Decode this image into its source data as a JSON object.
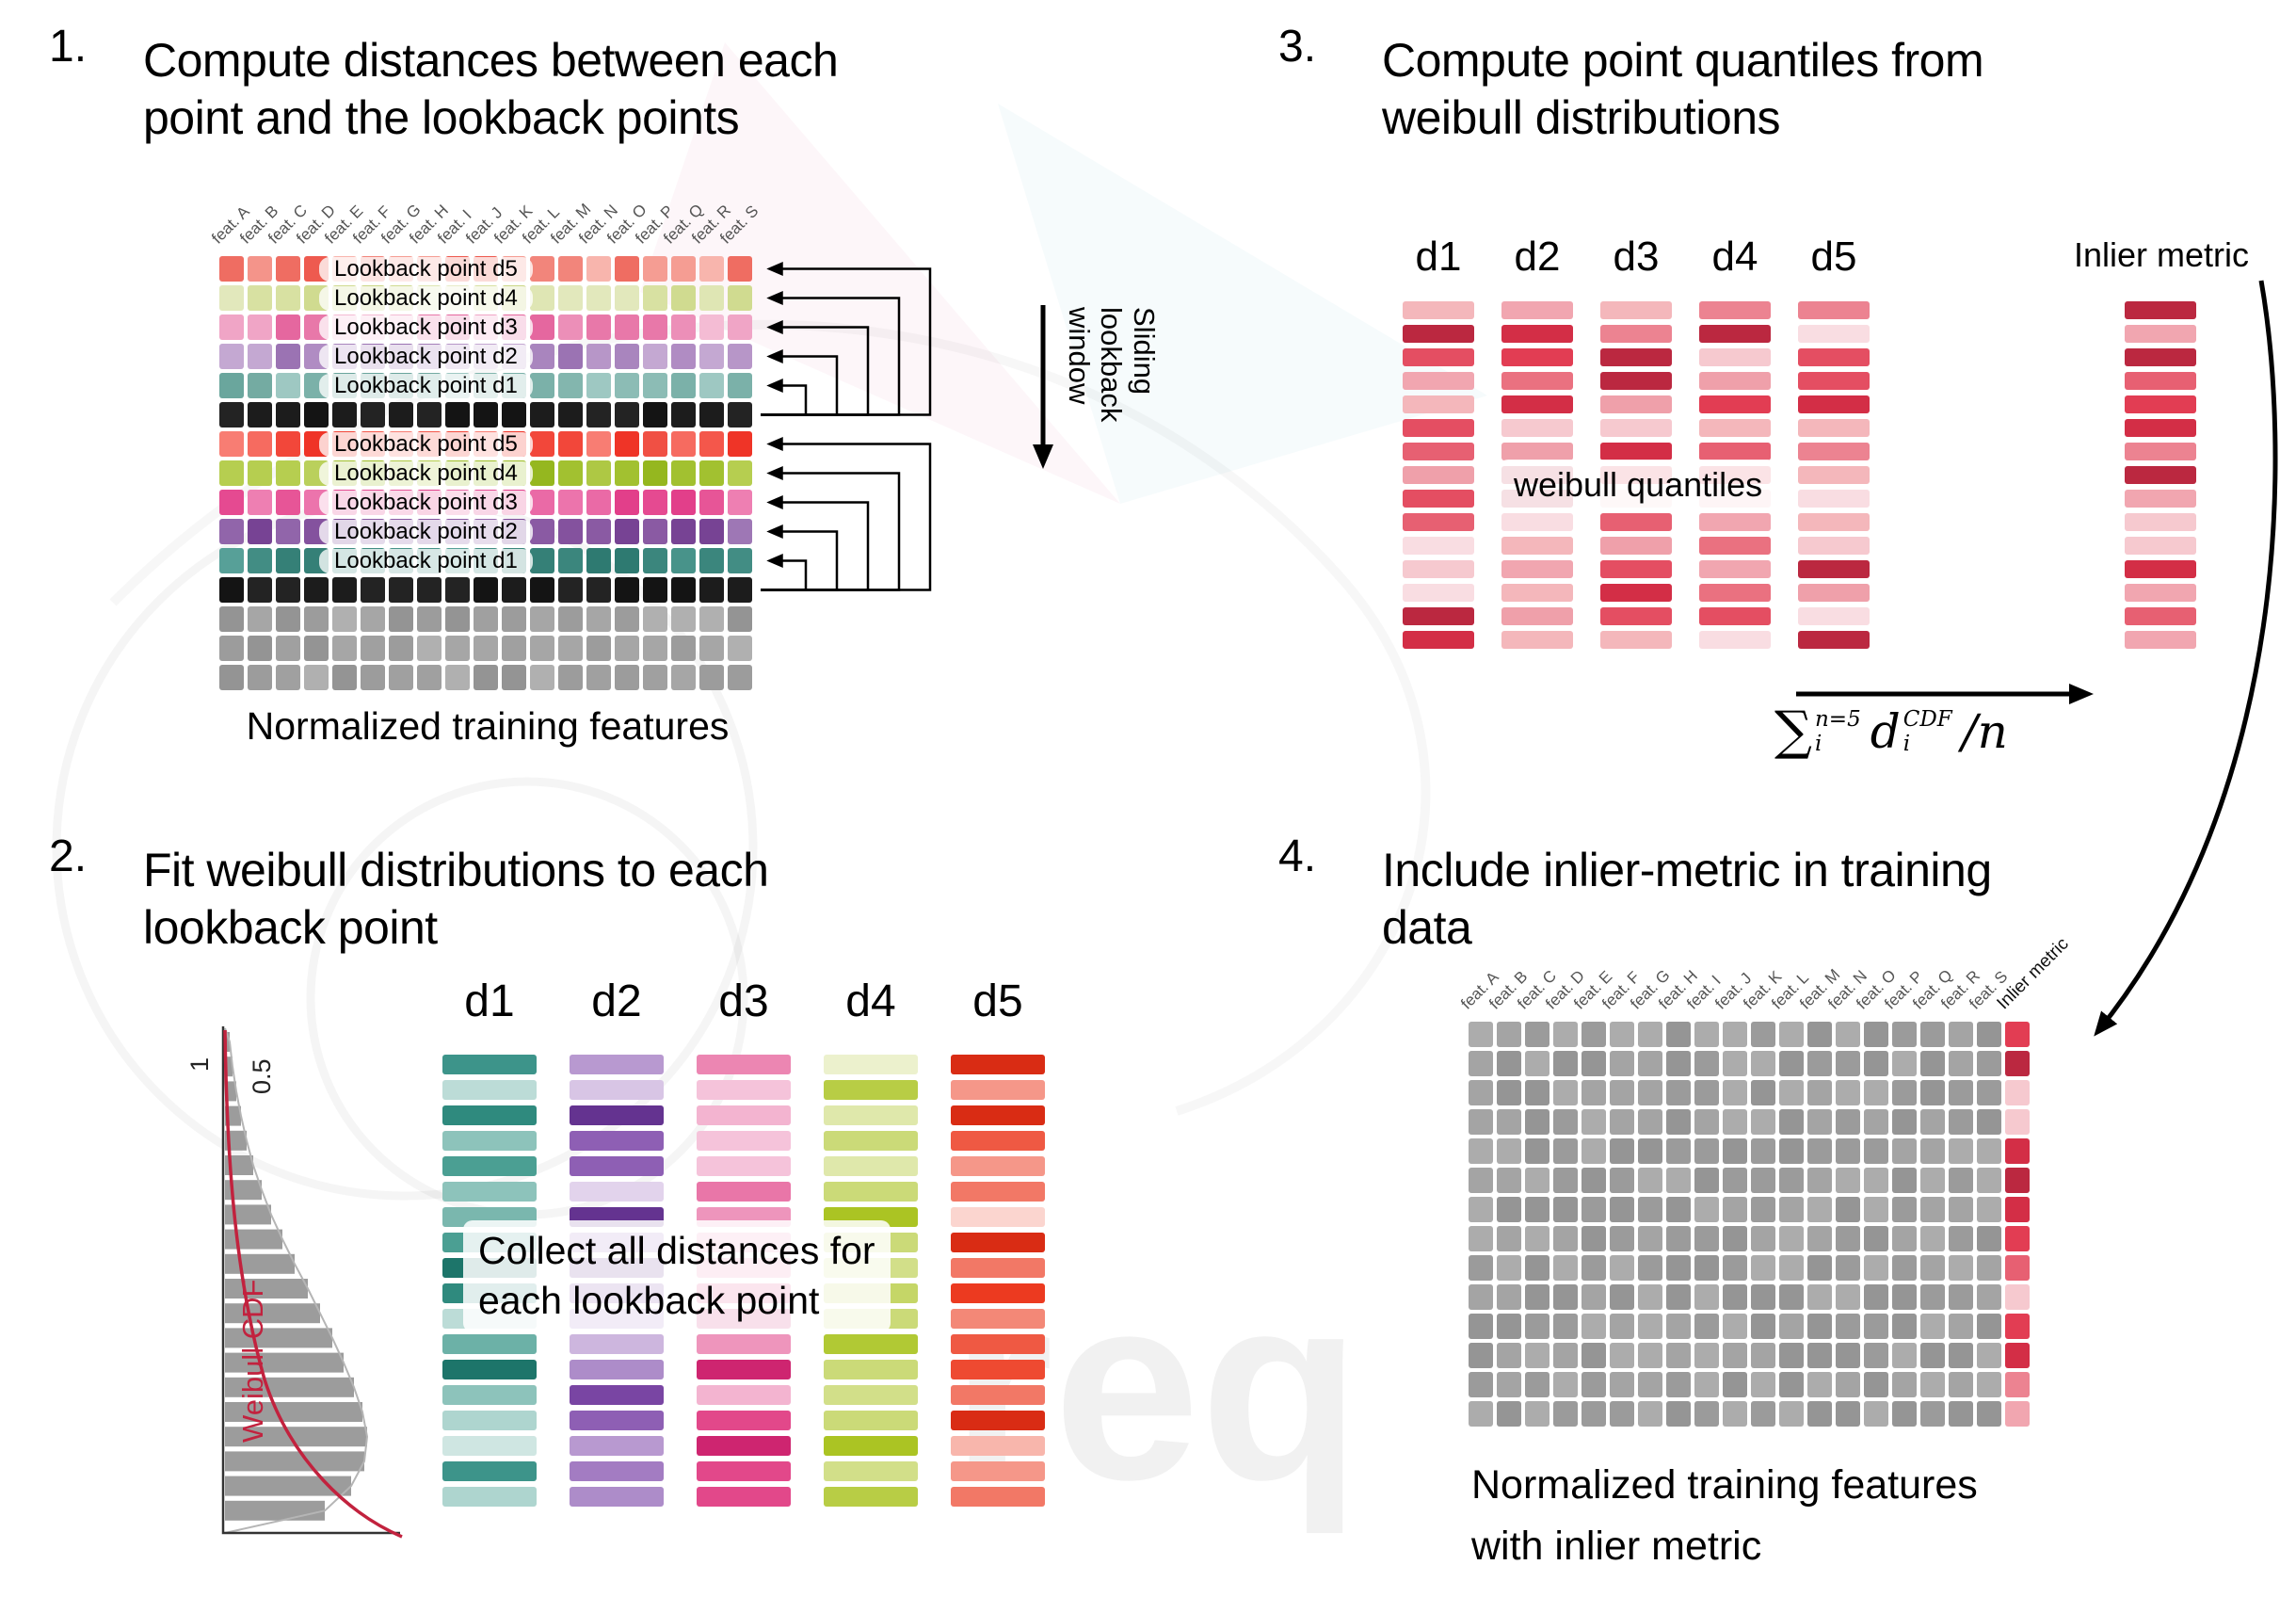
{
  "watermark": {
    "text": "req"
  },
  "features": [
    "feat. A",
    "feat. B",
    "feat. C",
    "feat. D",
    "feat. E",
    "feat. F",
    "feat. G",
    "feat. H",
    "feat. I",
    "feat. J",
    "feat. K",
    "feat. L",
    "feat. M",
    "feat. N",
    "feat. O",
    "feat. P",
    "feat. Q",
    "feat. R",
    "feat. S"
  ],
  "panels": {
    "p1": {
      "number": "1.",
      "title_lines": [
        "Compute distances between each",
        "point and the lookback points"
      ],
      "rows": [
        {
          "palette": "lb5a",
          "label": "Lookback point d5"
        },
        {
          "palette": "lb4a",
          "label": "Lookback point d4"
        },
        {
          "palette": "lb3a",
          "label": "Lookback point d3"
        },
        {
          "palette": "lb2a",
          "label": "Lookback point d2"
        },
        {
          "palette": "lb1a",
          "label": "Lookback point d1"
        },
        {
          "palette": "black"
        },
        {
          "palette": "lb5b",
          "label": "Lookback point d5"
        },
        {
          "palette": "lb4b",
          "label": "Lookback point d4"
        },
        {
          "palette": "lb3b",
          "label": "Lookback point d3"
        },
        {
          "palette": "lb2b",
          "label": "Lookback point d2"
        },
        {
          "palette": "lb1b",
          "label": "Lookback point d1"
        },
        {
          "palette": "black"
        },
        {
          "palette": "gray"
        },
        {
          "palette": "gray"
        },
        {
          "palette": "gray"
        }
      ],
      "sliding_label_lines": [
        "Sliding",
        "lookback",
        "window"
      ],
      "caption": "Normalized training features"
    },
    "p2": {
      "number": "2.",
      "title_lines": [
        "Fit weibull distributions to each",
        "lookback point"
      ],
      "plot": {
        "cdf_label": "Weibull CDF",
        "ticks": [
          "1",
          "0.5"
        ],
        "curve_color": "#c2223e",
        "bar_lengths": [
          5,
          8,
          12,
          17,
          23,
          30,
          39,
          49,
          61,
          74,
          88,
          101,
          114,
          126,
          137,
          146,
          151,
          148,
          134,
          106
        ]
      },
      "columns": [
        {
          "name": "d1",
          "palette": "t1"
        },
        {
          "name": "d2",
          "palette": "t2"
        },
        {
          "name": "d3",
          "palette": "t3"
        },
        {
          "name": "d4",
          "palette": "t4"
        },
        {
          "name": "d5",
          "palette": "t5"
        }
      ],
      "bars_per_column": 18,
      "overlay_lines": [
        "Collect all distances for",
        "each lookback point"
      ]
    },
    "p3": {
      "number": "3.",
      "title_lines": [
        "Compute point quantiles from",
        "weibull distributions"
      ],
      "columns": [
        "d1",
        "d2",
        "d3",
        "d4",
        "d5"
      ],
      "bars_per_column": 15,
      "overlay": "weibull quantiles",
      "inlier_label": "Inlier metric",
      "formula": {
        "sum": "∑",
        "sum_sup": "n=5",
        "sum_sub": "i",
        "term": "d",
        "term_sup": "CDF",
        "term_sub": "i",
        "tail": "/n"
      }
    },
    "p4": {
      "number": "4.",
      "title_lines": [
        "Include inlier-metric in training",
        "data"
      ],
      "inlier_label": "Inlier metric",
      "rows": 14,
      "caption_lines": [
        "Normalized training features",
        "with inlier metric"
      ]
    }
  },
  "palettes": {
    "lb5a": [
      "#f59d93",
      "#f2857b",
      "#ef6d62",
      "#f8b5ad",
      "#ee5a4f",
      "#f4948a"
    ],
    "lb4a": [
      "#dfe6b4",
      "#d8e1a2",
      "#e7ecc8",
      "#d0db90",
      "#e2e8bc",
      "#cbd786"
    ],
    "lb3a": [
      "#f0a5c6",
      "#ec8fb8",
      "#e878a9",
      "#f4bcd4",
      "#e5679f",
      "#ef9cc0"
    ],
    "lb2a": [
      "#b796c8",
      "#a985be",
      "#c4a8d2",
      "#9b73b3",
      "#b08cc3",
      "#a57fb9"
    ],
    "lb1a": [
      "#8cbcb5",
      "#7bb1a9",
      "#9ec8c2",
      "#6aa69d",
      "#83b6ae",
      "#74aba2"
    ],
    "black": [
      "#1c1c1c",
      "#141414",
      "#232323"
    ],
    "lb5b": [
      "#f4574b",
      "#f2473a",
      "#f66b60",
      "#ef3427",
      "#f87d73",
      "#f05044"
    ],
    "lb4b": [
      "#aec844",
      "#a2c130",
      "#bad05c",
      "#95b71f",
      "#b6ce50",
      "#9dbd28"
    ],
    "lb3b": [
      "#ea6aa6",
      "#e75597",
      "#ee7fb2",
      "#e23f8a",
      "#ec74ac",
      "#e54a91"
    ],
    "lb2b": [
      "#9165aa",
      "#84529e",
      "#9e77b5",
      "#774394",
      "#8a5aa3",
      "#7c4a98"
    ],
    "lb1b": [
      "#48938a",
      "#3b867d",
      "#57a098",
      "#2e7a71",
      "#428d84",
      "#358077"
    ],
    "gray": [
      "#a6a6a6",
      "#9c9c9c",
      "#b0b0b0",
      "#949494",
      "#a0a0a0"
    ],
    "t1": [
      "#cfe6e2",
      "#aed5cf",
      "#8dc3bb",
      "#6cb1a7",
      "#4b9f93",
      "#2f8a7e",
      "#1d756a",
      "#bcdcd7",
      "#7ab7ae",
      "#3d948a"
    ],
    "t2": [
      "#e2d3ec",
      "#cdb6de",
      "#b899d0",
      "#a37cc2",
      "#8e5fb4",
      "#7945a3",
      "#643390",
      "#d8c5e5",
      "#ad8cc9",
      "#8351aa"
    ],
    "t3": [
      "#f8d3e4",
      "#f3b4d0",
      "#ee95bc",
      "#e976a8",
      "#e45794",
      "#df3880",
      "#ce2570",
      "#f5c3da",
      "#ec86b2",
      "#e2488a"
    ],
    "t4": [
      "#ecf1cd",
      "#dfe8ab",
      "#d2df89",
      "#c5d667",
      "#b8cd45",
      "#abc423",
      "#93ab15",
      "#e5edbc",
      "#cbda78",
      "#b1c934"
    ],
    "t5": [
      "#fbd5cf",
      "#f8b6ac",
      "#f59789",
      "#f27866",
      "#ef5943",
      "#ec3a20",
      "#d92c14",
      "#f9c5bd",
      "#f38877",
      "#ee4a31"
    ],
    "q": [
      "#f6c9cf",
      "#f1a6b0",
      "#ec8391",
      "#e76072",
      "#e23d53",
      "#d32e46",
      "#bb2840",
      "#f4b7bb",
      "#ea7180",
      "#dd3550",
      "#efa0aa",
      "#e44e62",
      "#f9dde2"
    ],
    "p4gray": [
      "#a4a4a4",
      "#9b9b9b",
      "#acacac",
      "#959595"
    ],
    "inlierCol": [
      "#f1a6b0",
      "#e76072",
      "#e23d53",
      "#f6c9cf",
      "#d32e46",
      "#ec8391",
      "#bb2840"
    ]
  }
}
